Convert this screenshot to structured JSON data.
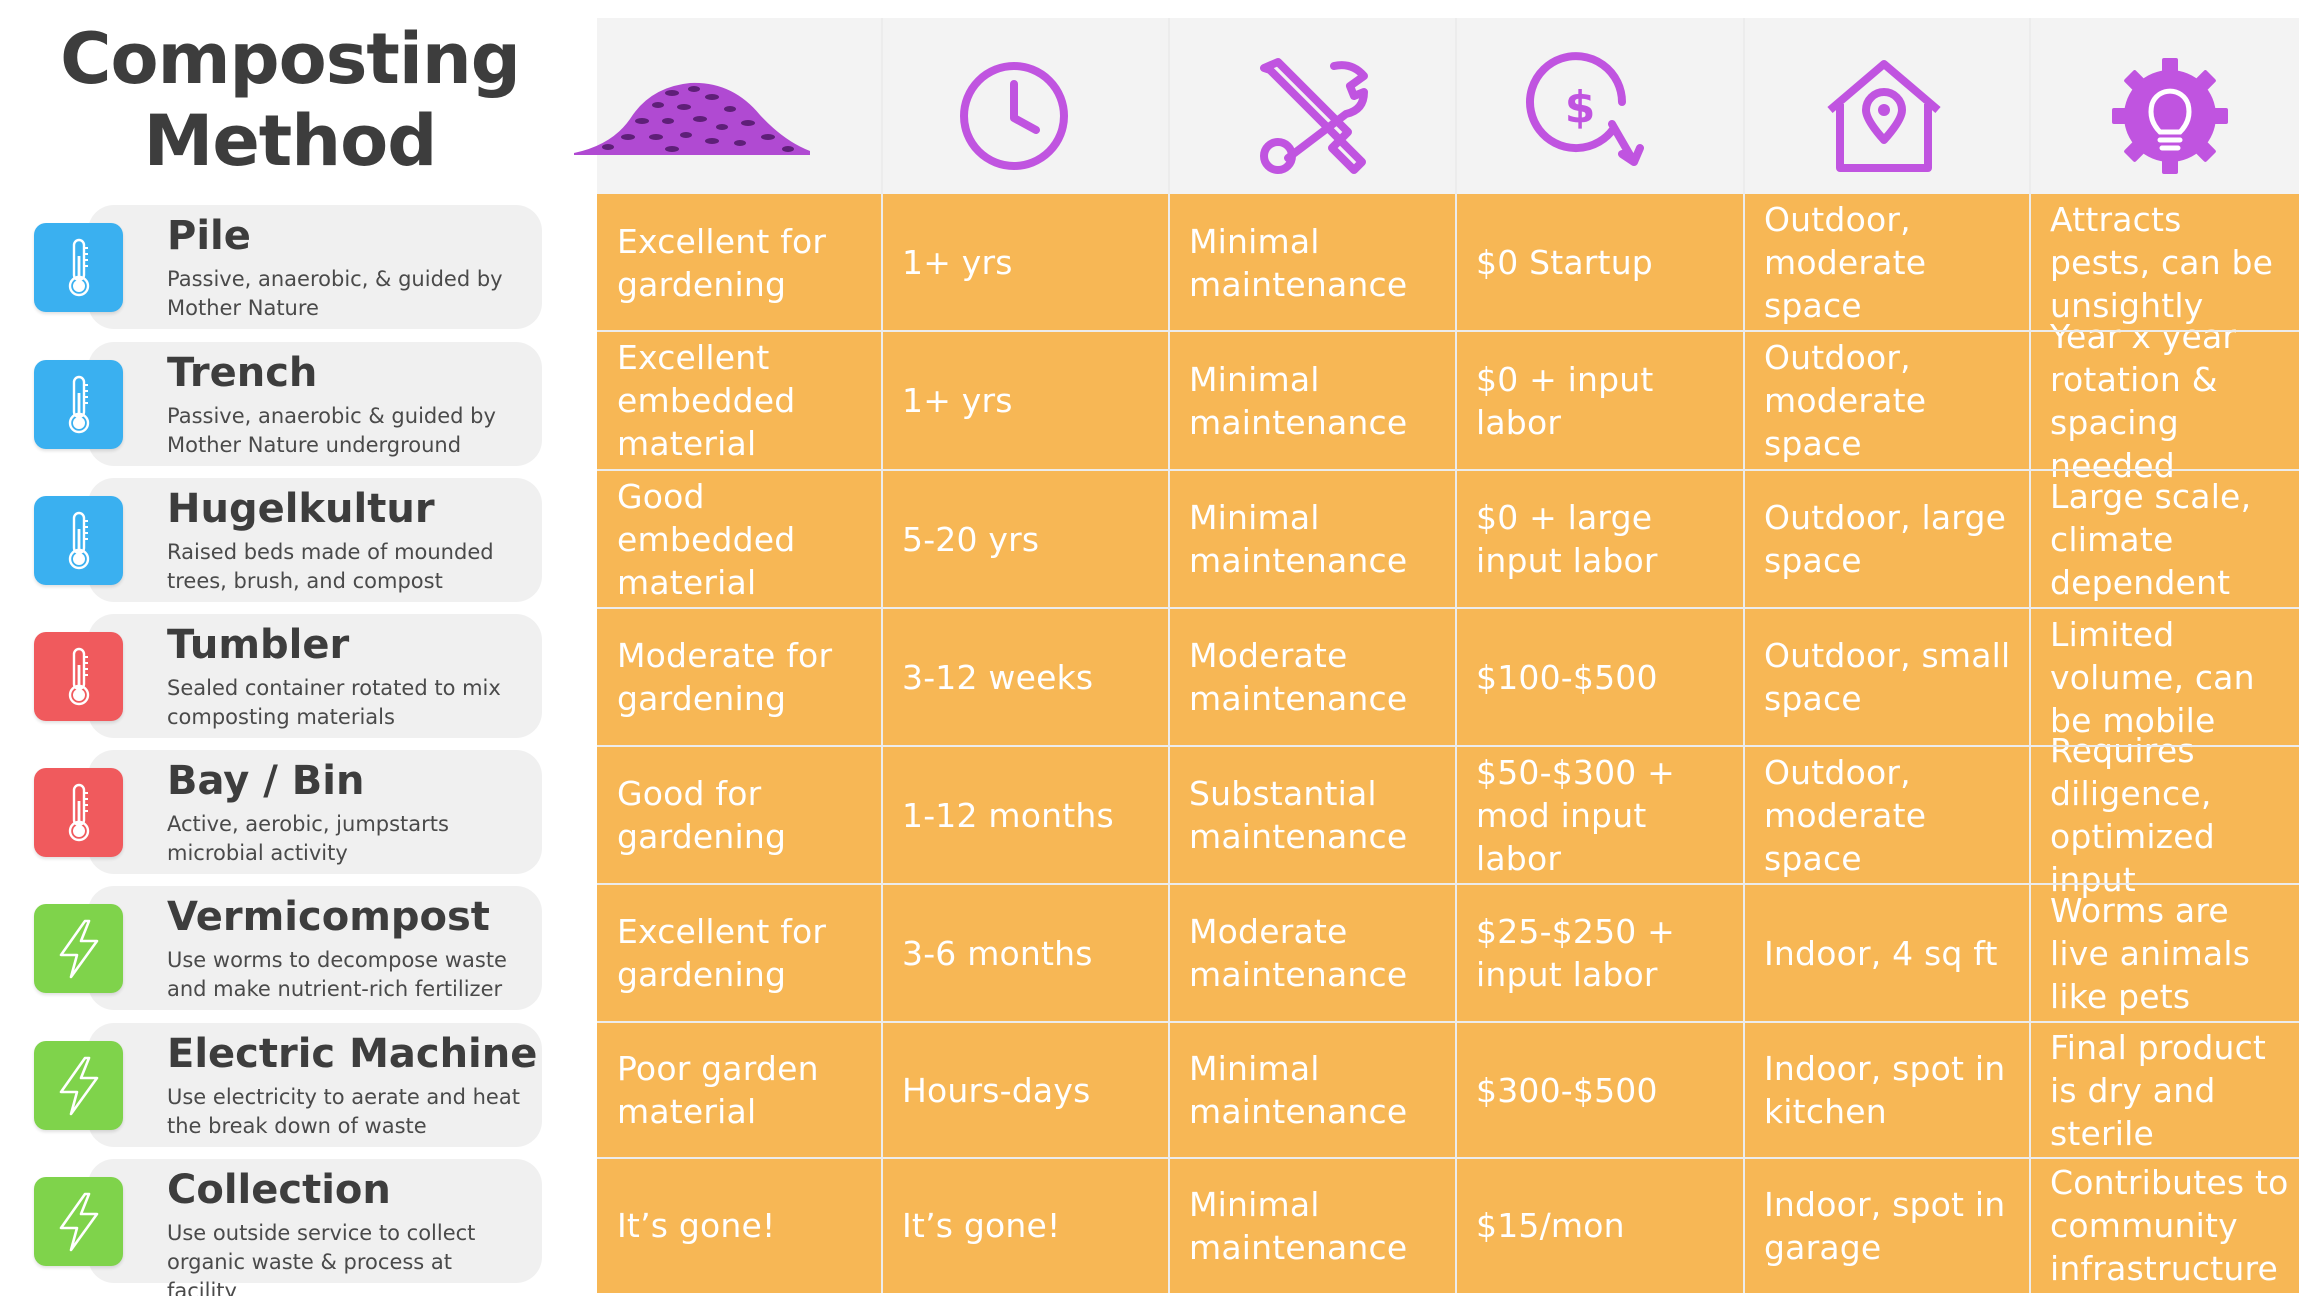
{
  "title": {
    "line1": "Composting",
    "line2": "Method"
  },
  "colors": {
    "blue": "#3ab0f0",
    "red": "#f05a5d",
    "green": "#7fd34b",
    "table_fill": "#f7b755",
    "header_fill": "#f3f3f3",
    "icon_purple": "#c054e0"
  },
  "header_icons": [
    "compost-pile-icon",
    "clock-icon",
    "tools-icon",
    "cost-icon",
    "location-house-icon",
    "idea-gear-icon"
  ],
  "methods": [
    {
      "name": "Pile",
      "description": "Passive, anaerobic, & guided by Mother Nature",
      "icon": "thermometer-icon",
      "icon_color": "blue",
      "cells": [
        "Excellent for gardening",
        "1+ yrs",
        "Minimal maintenance",
        "$0 Startup",
        "Outdoor, moderate space",
        "Attracts pests, can be unsightly"
      ]
    },
    {
      "name": "Trench",
      "description": "Passive, anaerobic & guided by Mother Nature underground",
      "icon": "thermometer-icon",
      "icon_color": "blue",
      "cells": [
        "Excellent embedded material",
        "1+ yrs",
        "Minimal maintenance",
        "$0 + input labor",
        "Outdoor, moderate space",
        "Year x year rotation & spacing needed"
      ]
    },
    {
      "name": "Hugelkultur",
      "description": "Raised beds made of mounded trees, brush, and compost",
      "icon": "thermometer-icon",
      "icon_color": "blue",
      "cells": [
        "Good embedded material",
        "5-20 yrs",
        "Minimal maintenance",
        "$0 + large input labor",
        "Outdoor, large space",
        "Large scale, climate dependent"
      ]
    },
    {
      "name": "Tumbler",
      "description": " Sealed container rotated to mix composting materials",
      "icon": "thermometer-icon",
      "icon_color": "red",
      "cells": [
        "Moderate for gardening",
        "3-12 weeks",
        "Moderate maintenance",
        "$100-$500",
        "Outdoor, small space",
        "Limited volume, can be mobile"
      ]
    },
    {
      "name": "Bay / Bin",
      "description": "Active, aerobic, jumpstarts microbial activity",
      "icon": "thermometer-icon",
      "icon_color": "red",
      "cells": [
        "Good for gardening",
        "1-12 months",
        "Substantial maintenance",
        "$50-$300 + mod input labor",
        "Outdoor, moderate space",
        "Requires diligence, optimized input"
      ]
    },
    {
      "name": "Vermicompost",
      "description": "Use worms to decompose waste and make nutrient-rich fertilizer",
      "icon": "lightning-icon",
      "icon_color": "green",
      "cells": [
        "Excellent for gardening",
        "3-6 months",
        "Moderate maintenance",
        "$25-$250 + input labor",
        "Indoor, 4 sq ft",
        "Worms are live animals like pets"
      ]
    },
    {
      "name": "Electric Machine",
      "description": "Use electricity to aerate and heat the break down of waste",
      "icon": "lightning-icon",
      "icon_color": "green",
      "cells": [
        "Poor garden material",
        "Hours-days",
        "Minimal maintenance",
        "$300-$500",
        "Indoor, spot in kitchen",
        "Final product is dry and sterile"
      ]
    },
    {
      "name": "Collection",
      "description": "Use outside service to collect organic waste & process at facility",
      "icon": "lightning-icon",
      "icon_color": "green",
      "cells": [
        "It’s gone!",
        "It’s gone!",
        "Minimal maintenance",
        "$15/mon",
        "Indoor, spot in garage",
        "Contributes to community infrastructure"
      ]
    }
  ]
}
